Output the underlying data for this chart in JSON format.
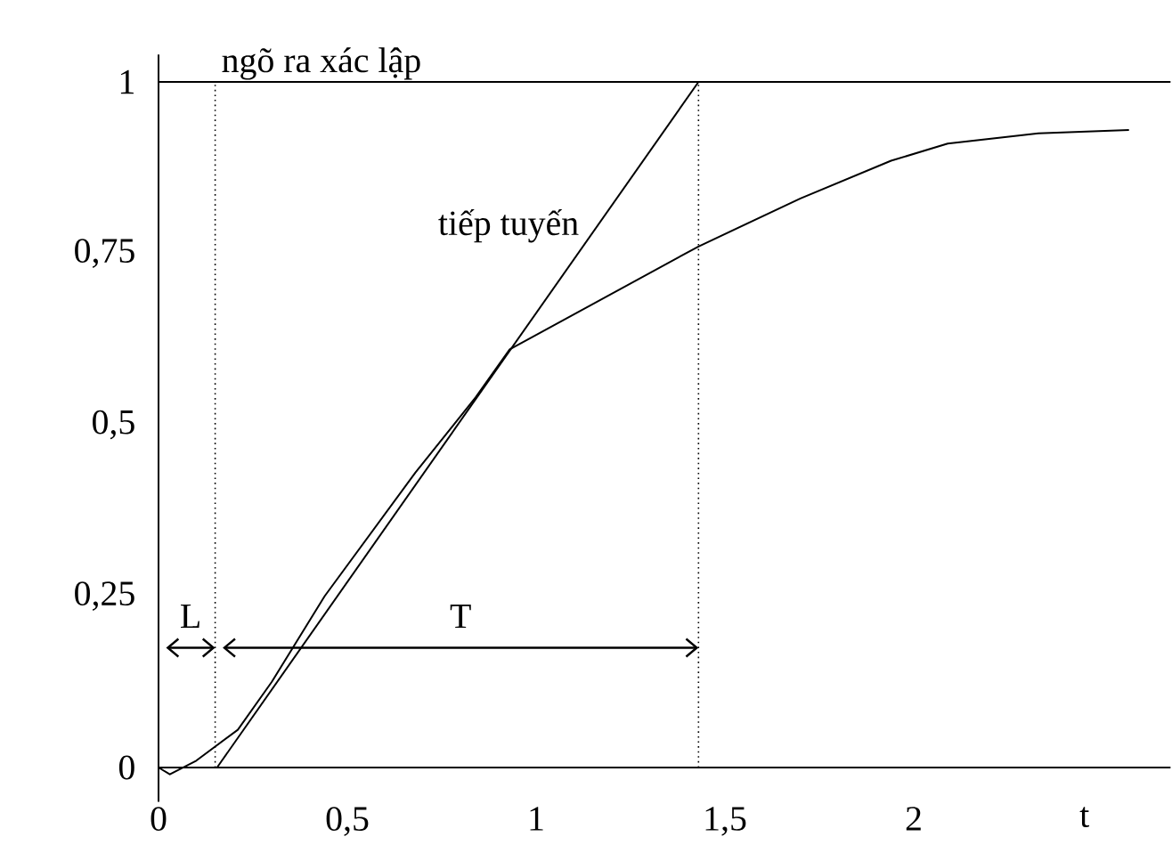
{
  "chart_data": {
    "type": "line",
    "xlabel": "t",
    "xlim": [
      0,
      2.68
    ],
    "ylim": [
      -0.05,
      1.04
    ],
    "xticks": [
      0,
      {
        "value": 0.5,
        "label": "0,5"
      },
      1,
      {
        "value": 1.5,
        "label": "1,5"
      },
      2
    ],
    "yticks": [
      0,
      {
        "value": 0.25,
        "label": "0,25"
      },
      {
        "value": 0.5,
        "label": "0,5"
      },
      {
        "value": 0.75,
        "label": "0,75"
      },
      1
    ],
    "series": [
      {
        "x": [
          0,
          0.03,
          0.1,
          0.21,
          0.3,
          0.44,
          0.68,
          0.84,
          0.93,
          1.18,
          1.43,
          1.7,
          1.94,
          2.09,
          2.33,
          2.57
        ],
        "values": [
          0,
          -0.01,
          0.01,
          0.055,
          0.125,
          0.25,
          0.43,
          0.54,
          0.61,
          0.685,
          0.76,
          0.83,
          0.885,
          0.91,
          0.925,
          0.93
        ],
        "color": "#000000"
      },
      {
        "name": "tiếp tuyến",
        "x": [
          0.155,
          1.43
        ],
        "values": [
          0,
          1
        ],
        "color": "#000000"
      }
    ],
    "ref_lines": [
      {
        "axis": "y",
        "value": 1,
        "label": "ngõ ra xác lập"
      },
      {
        "axis": "y",
        "value": 0
      },
      {
        "axis": "x",
        "value": 0.15,
        "line_style": "dotted"
      },
      {
        "axis": "x",
        "value": 1.43,
        "line_style": "dotted"
      }
    ],
    "annotations": [
      "L",
      "T"
    ],
    "grid": false,
    "legend": false,
    "marker": "none",
    "line_style": "solid"
  }
}
